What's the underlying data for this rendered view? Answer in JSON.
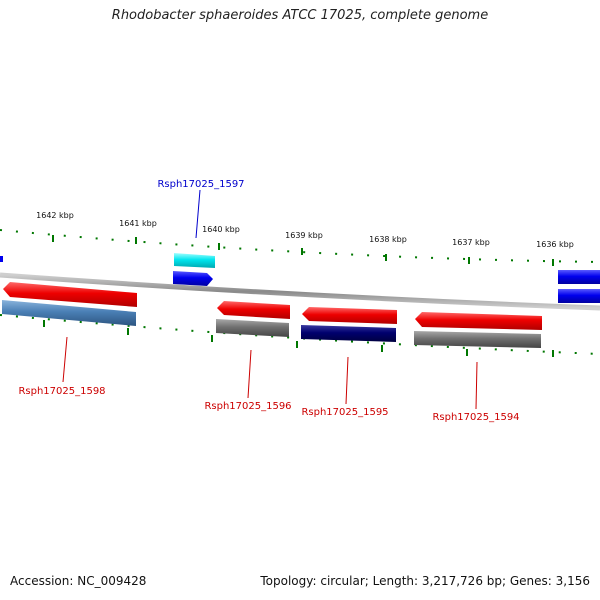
{
  "title": "Rhodobacter sphaeroides ATCC 17025, complete genome",
  "footer": {
    "accession": "Accession: NC_009428",
    "summary": "Topology: circular; Length: 3,217,726 bp; Genes: 3,156"
  },
  "kbp_labels": [
    "1642 kbp",
    "1641 kbp",
    "1640 kbp",
    "1639 kbp",
    "1638 kbp",
    "1637 kbp",
    "1636 kbp"
  ],
  "genes": [
    {
      "label": "Rsph17025_1597",
      "color": "#0000cc"
    },
    {
      "label": "Rsph17025_1598",
      "color": "#cc0000"
    },
    {
      "label": "Rsph17025_1596",
      "color": "#cc0000"
    },
    {
      "label": "Rsph17025_1595",
      "color": "#cc0000"
    },
    {
      "label": "Rsph17025_1594",
      "color": "#cc0000"
    }
  ],
  "colors": {
    "forward_gene": "#0000ee",
    "reverse_gene": "#ee0000",
    "forward_feature": "#00e5ee",
    "reverse_feature_grey": "#707070",
    "reverse_feature_blue": "#4a7fb5",
    "reverse_feature_navy": "#00006e",
    "tick": "#007700",
    "backbone": "#9a9a9a"
  }
}
